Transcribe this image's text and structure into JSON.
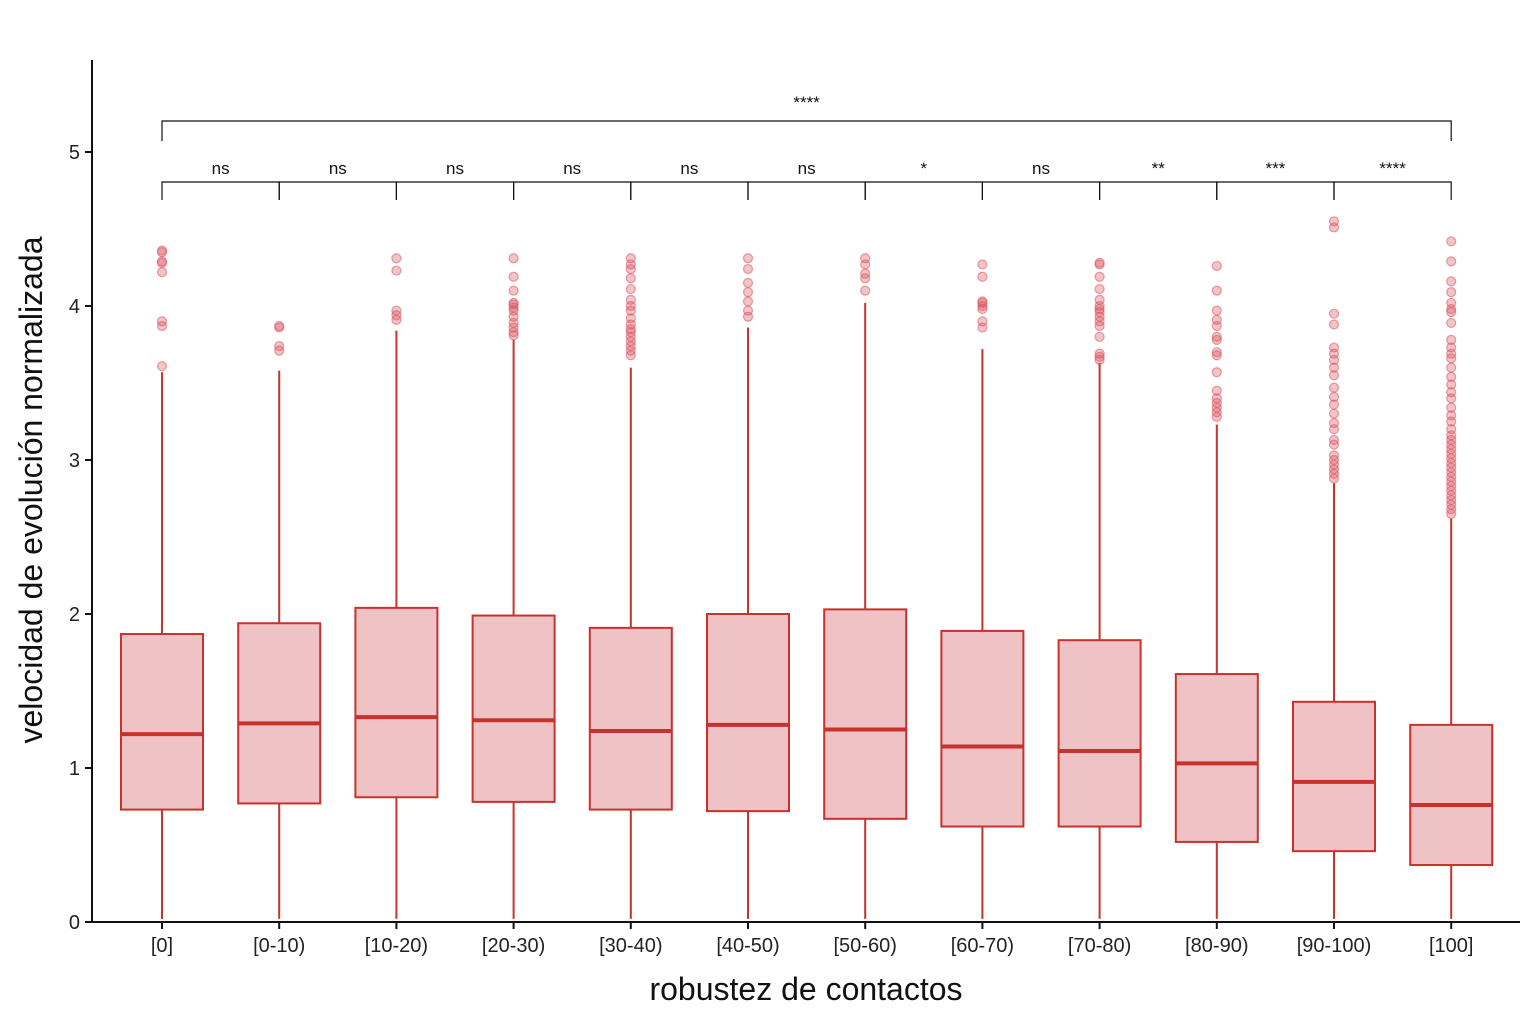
{
  "chart_data": {
    "type": "boxplot",
    "xlabel": "robustez de contactos",
    "ylabel": "velocidad de evolución normalizada",
    "ylim": [
      0,
      5.6
    ],
    "yticks": [
      0,
      1,
      2,
      3,
      4,
      5
    ],
    "grid": false,
    "colors": {
      "stroke": "#c8322d",
      "fill": "#efc3c6",
      "outlier": "#d9545e"
    },
    "categories": [
      "[0]",
      "[0-10)",
      "[10-20)",
      "[20-30)",
      "[30-40)",
      "[40-50)",
      "[50-60)",
      "[60-70)",
      "[70-80)",
      "[80-90)",
      "[90-100)",
      "[100]"
    ],
    "boxes": [
      {
        "low": 0.02,
        "q1": 0.73,
        "median": 1.22,
        "q3": 1.87,
        "high": 3.57,
        "outliers": [
          3.61,
          3.87,
          3.9,
          4.22,
          4.28,
          4.29,
          4.35,
          4.36
        ]
      },
      {
        "low": 0.02,
        "q1": 0.77,
        "median": 1.29,
        "q3": 1.94,
        "high": 3.58,
        "outliers": [
          3.71,
          3.74,
          3.86,
          3.87
        ]
      },
      {
        "low": 0.02,
        "q1": 0.81,
        "median": 1.33,
        "q3": 2.04,
        "high": 3.84,
        "outliers": [
          3.91,
          3.94,
          3.97,
          4.23,
          4.31
        ]
      },
      {
        "low": 0.02,
        "q1": 0.78,
        "median": 1.31,
        "q3": 1.99,
        "high": 3.78,
        "outliers": [
          3.81,
          3.83,
          3.86,
          3.89,
          3.93,
          3.97,
          3.99,
          4.01,
          4.02,
          4.1,
          4.19,
          4.31
        ]
      },
      {
        "low": 0.02,
        "q1": 0.73,
        "median": 1.24,
        "q3": 1.91,
        "high": 3.6,
        "outliers": [
          3.68,
          3.71,
          3.74,
          3.77,
          3.8,
          3.83,
          3.85,
          3.88,
          3.92,
          3.97,
          4.0,
          4.04,
          4.11,
          4.18,
          4.24,
          4.27,
          4.31
        ]
      },
      {
        "low": 0.02,
        "q1": 0.72,
        "median": 1.28,
        "q3": 2.0,
        "high": 3.86,
        "outliers": [
          3.93,
          3.97,
          4.03,
          4.09,
          4.15,
          4.24,
          4.31
        ]
      },
      {
        "low": 0.02,
        "q1": 0.67,
        "median": 1.25,
        "q3": 2.03,
        "high": 4.02,
        "outliers": [
          4.1,
          4.18,
          4.21,
          4.27,
          4.31
        ]
      },
      {
        "low": 0.02,
        "q1": 0.62,
        "median": 1.14,
        "q3": 1.89,
        "high": 3.72,
        "outliers": [
          3.86,
          3.9,
          3.98,
          4.0,
          4.02,
          4.03,
          4.19,
          4.27
        ]
      },
      {
        "low": 0.02,
        "q1": 0.62,
        "median": 1.11,
        "q3": 1.83,
        "high": 3.63,
        "outliers": [
          3.65,
          3.67,
          3.69,
          3.8,
          3.87,
          3.9,
          3.93,
          3.96,
          3.98,
          4.0,
          4.04,
          4.11,
          4.19,
          4.27,
          4.28
        ]
      },
      {
        "low": 0.02,
        "q1": 0.52,
        "median": 1.03,
        "q3": 1.61,
        "high": 3.23,
        "outliers": [
          3.28,
          3.31,
          3.34,
          3.37,
          3.4,
          3.45,
          3.57,
          3.68,
          3.7,
          3.78,
          3.8,
          3.87,
          3.91,
          3.97,
          4.1,
          4.26
        ]
      },
      {
        "low": 0.02,
        "q1": 0.46,
        "median": 0.91,
        "q3": 1.43,
        "high": 2.85,
        "outliers": [
          2.88,
          2.91,
          2.94,
          2.97,
          3.0,
          3.03,
          3.1,
          3.13,
          3.2,
          3.24,
          3.3,
          3.36,
          3.41,
          3.47,
          3.55,
          3.6,
          3.65,
          3.69,
          3.73,
          3.88,
          3.95,
          4.51,
          4.55
        ]
      },
      {
        "low": 0.02,
        "q1": 0.37,
        "median": 0.76,
        "q3": 1.28,
        "high": 2.62,
        "outliers": [
          2.65,
          2.68,
          2.71,
          2.74,
          2.77,
          2.8,
          2.83,
          2.86,
          2.89,
          2.92,
          2.95,
          2.98,
          3.01,
          3.04,
          3.07,
          3.1,
          3.13,
          3.16,
          3.2,
          3.25,
          3.29,
          3.34,
          3.4,
          3.44,
          3.49,
          3.54,
          3.6,
          3.66,
          3.69,
          3.73,
          3.78,
          3.89,
          3.96,
          3.98,
          4.02,
          4.09,
          4.16,
          4.29,
          4.42
        ]
      }
    ],
    "comparisons": [
      {
        "from": 0,
        "to": 1,
        "label": "ns"
      },
      {
        "from": 1,
        "to": 2,
        "label": "ns"
      },
      {
        "from": 2,
        "to": 3,
        "label": "ns"
      },
      {
        "from": 3,
        "to": 4,
        "label": "ns"
      },
      {
        "from": 4,
        "to": 5,
        "label": "ns"
      },
      {
        "from": 5,
        "to": 6,
        "label": "ns"
      },
      {
        "from": 6,
        "to": 7,
        "label": "*"
      },
      {
        "from": 7,
        "to": 8,
        "label": "ns"
      },
      {
        "from": 8,
        "to": 9,
        "label": "**"
      },
      {
        "from": 9,
        "to": 10,
        "label": "***"
      },
      {
        "from": 10,
        "to": 11,
        "label": "****"
      }
    ],
    "overall_comparison": {
      "from": 0,
      "to": 11,
      "label": "****"
    }
  }
}
